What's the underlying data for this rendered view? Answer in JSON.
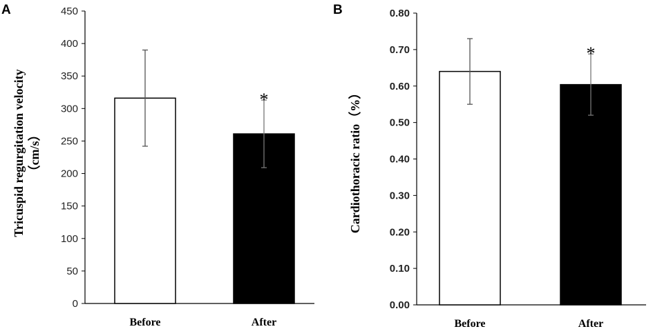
{
  "chart_data": [
    {
      "type": "bar",
      "panel": "A",
      "categories": [
        "Before",
        "After"
      ],
      "values": [
        316,
        261
      ],
      "errors": [
        74,
        52
      ],
      "bar_colors": [
        "#ffffff",
        "#000000"
      ],
      "significance": [
        "",
        "*"
      ],
      "ylabel_line1": "Tricuspid regurgitation velocity",
      "ylabel_line2": "（cm/s）",
      "ylim": [
        0,
        450
      ],
      "yticks": [
        0,
        50,
        100,
        150,
        200,
        250,
        300,
        350,
        400,
        450
      ],
      "ytick_labels": [
        "0",
        "50",
        "100",
        "150",
        "200",
        "250",
        "300",
        "350",
        "400",
        "450"
      ],
      "grid": false,
      "legend": "none"
    },
    {
      "type": "bar",
      "panel": "B",
      "categories": [
        "Before",
        "After"
      ],
      "values": [
        0.64,
        0.604
      ],
      "errors": [
        0.09,
        0.084
      ],
      "bar_colors": [
        "#ffffff",
        "#000000"
      ],
      "significance": [
        "",
        "*"
      ],
      "ylabel": "Cardiothoracic ratio（%）",
      "ylim": [
        0,
        0.8
      ],
      "yticks": [
        0,
        0.1,
        0.2,
        0.3,
        0.4,
        0.5,
        0.6,
        0.7,
        0.8
      ],
      "ytick_labels": [
        "0.00",
        "0.10",
        "0.20",
        "0.30",
        "0.40",
        "0.50",
        "0.60",
        "0.70",
        "0.80"
      ],
      "grid": false,
      "legend": "none"
    }
  ]
}
